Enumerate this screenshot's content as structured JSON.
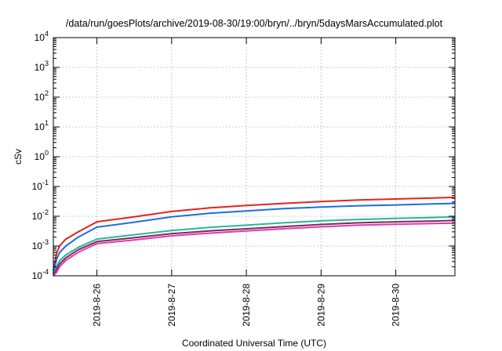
{
  "chart_data": {
    "type": "line",
    "title": "/data/run/goesPlots/archive/2019-08-30/19:00/bryn/../bryn/5daysMarsAccumulated.plot",
    "xlabel": "Coordinated Universal Time (UTC)",
    "ylabel": "cSv",
    "y_scale": "log",
    "ylim": [
      0.0001,
      10000
    ],
    "xlim": [
      "2019-08-25T10:00",
      "2019-08-30T19:00"
    ],
    "y_ticks": [
      {
        "base": "10",
        "exp": "-4"
      },
      {
        "base": "10",
        "exp": "-3"
      },
      {
        "base": "10",
        "exp": "-2"
      },
      {
        "base": "10",
        "exp": "-1"
      },
      {
        "base": "10",
        "exp": "0"
      },
      {
        "base": "10",
        "exp": "1"
      },
      {
        "base": "10",
        "exp": "2"
      },
      {
        "base": "10",
        "exp": "3"
      },
      {
        "base": "10",
        "exp": "4"
      }
    ],
    "x_ticks": [
      "2019-8-26",
      "2019-8-27",
      "2019-8-28",
      "2019-8-29",
      "2019-8-30"
    ],
    "grid": true,
    "series": [
      {
        "color": "#e8211b",
        "x": [
          "2019-08-25T10:00",
          "2019-08-25T11:00",
          "2019-08-25T12:00",
          "2019-08-25T14:00",
          "2019-08-25T18:00",
          "2019-08-26T00:00",
          "2019-08-26T12:00",
          "2019-08-27T00:00",
          "2019-08-27T12:00",
          "2019-08-28T00:00",
          "2019-08-28T12:00",
          "2019-08-29T00:00",
          "2019-08-29T12:00",
          "2019-08-30T00:00",
          "2019-08-30T12:00",
          "2019-08-30T19:00"
        ],
        "y": [
          0.00015,
          0.00055,
          0.001,
          0.0017,
          0.003,
          0.0065,
          0.0095,
          0.0145,
          0.019,
          0.023,
          0.027,
          0.031,
          0.035,
          0.038,
          0.041,
          0.043
        ]
      },
      {
        "color": "#1a6fe0",
        "x": [
          "2019-08-25T10:00",
          "2019-08-25T11:00",
          "2019-08-25T12:00",
          "2019-08-25T14:00",
          "2019-08-25T18:00",
          "2019-08-26T00:00",
          "2019-08-26T12:00",
          "2019-08-27T00:00",
          "2019-08-27T12:00",
          "2019-08-28T00:00",
          "2019-08-28T12:00",
          "2019-08-29T00:00",
          "2019-08-29T12:00",
          "2019-08-30T00:00",
          "2019-08-30T12:00",
          "2019-08-30T19:00"
        ],
        "y": [
          0.00012,
          0.00035,
          0.0006,
          0.001,
          0.002,
          0.0043,
          0.0063,
          0.0095,
          0.0125,
          0.015,
          0.018,
          0.0205,
          0.0225,
          0.024,
          0.026,
          0.027
        ]
      },
      {
        "color": "#26b89a",
        "x": [
          "2019-08-25T10:00",
          "2019-08-25T11:00",
          "2019-08-25T12:00",
          "2019-08-25T14:00",
          "2019-08-25T18:00",
          "2019-08-26T00:00",
          "2019-08-26T12:00",
          "2019-08-27T00:00",
          "2019-08-27T12:00",
          "2019-08-28T00:00",
          "2019-08-28T12:00",
          "2019-08-29T00:00",
          "2019-08-29T12:00",
          "2019-08-30T00:00",
          "2019-08-30T12:00",
          "2019-08-30T19:00"
        ],
        "y": [
          0.0001,
          0.0002,
          0.00032,
          0.0005,
          0.0009,
          0.0017,
          0.0024,
          0.0033,
          0.0042,
          0.005,
          0.006,
          0.007,
          0.0078,
          0.0085,
          0.0091,
          0.0096
        ]
      },
      {
        "color": "#7a2b52",
        "x": [
          "2019-08-25T10:00",
          "2019-08-25T11:00",
          "2019-08-25T12:00",
          "2019-08-25T14:00",
          "2019-08-25T18:00",
          "2019-08-26T00:00",
          "2019-08-26T12:00",
          "2019-08-27T00:00",
          "2019-08-27T12:00",
          "2019-08-28T00:00",
          "2019-08-28T12:00",
          "2019-08-29T00:00",
          "2019-08-29T12:00",
          "2019-08-30T00:00",
          "2019-08-30T12:00",
          "2019-08-30T19:00"
        ],
        "y": [
          0.0001,
          0.00016,
          0.00025,
          0.0004,
          0.00075,
          0.0014,
          0.0019,
          0.0026,
          0.0032,
          0.0038,
          0.0045,
          0.0053,
          0.006,
          0.0065,
          0.0069,
          0.0072
        ]
      },
      {
        "color": "#e535b5",
        "x": [
          "2019-08-25T10:00",
          "2019-08-25T11:00",
          "2019-08-25T12:00",
          "2019-08-25T14:00",
          "2019-08-25T18:00",
          "2019-08-26T00:00",
          "2019-08-26T12:00",
          "2019-08-27T00:00",
          "2019-08-27T12:00",
          "2019-08-28T00:00",
          "2019-08-28T12:00",
          "2019-08-29T00:00",
          "2019-08-29T12:00",
          "2019-08-30T00:00",
          "2019-08-30T12:00",
          "2019-08-30T19:00"
        ],
        "y": [
          0.0001,
          0.00013,
          0.0002,
          0.00033,
          0.00062,
          0.0012,
          0.0016,
          0.0022,
          0.0027,
          0.0032,
          0.0038,
          0.0044,
          0.005,
          0.0054,
          0.0057,
          0.0059
        ]
      }
    ]
  }
}
